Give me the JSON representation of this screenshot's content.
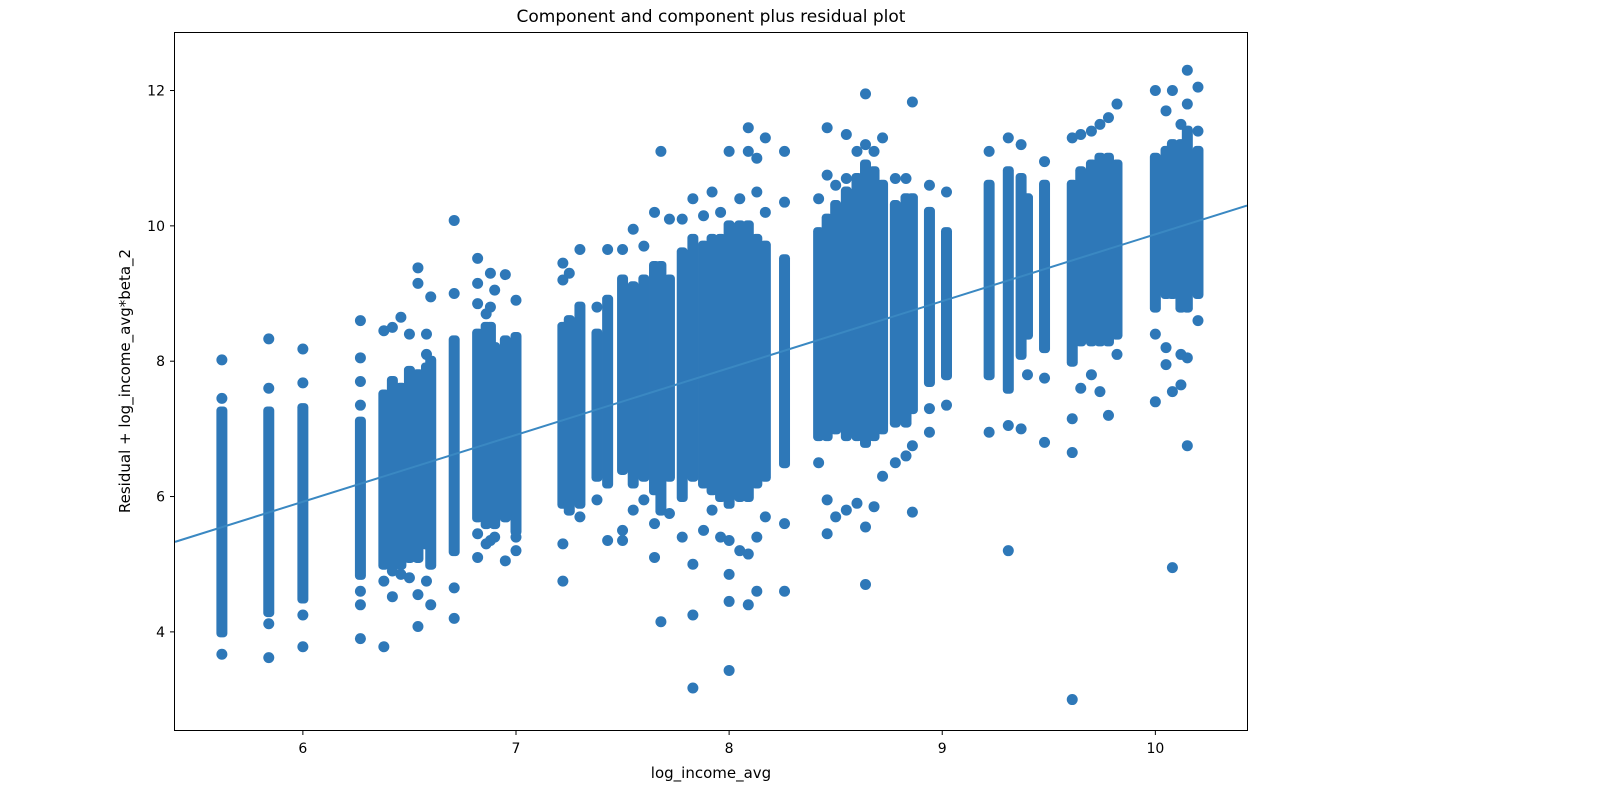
{
  "chart_data": {
    "type": "scatter",
    "title": "Component and component plus residual plot",
    "xlabel": "log_income_avg",
    "ylabel": "Residual + log_income_avg*beta_2",
    "xlim": [
      5.4,
      10.43
    ],
    "ylim": [
      2.55,
      12.85
    ],
    "x_ticks": [
      6,
      7,
      8,
      9,
      10
    ],
    "y_ticks": [
      4,
      6,
      8,
      10,
      12
    ],
    "grid": false,
    "legend": "none",
    "colors": {
      "points": "#2e78b8",
      "line": "#3a88c2",
      "axes": "#000000"
    },
    "fit_line": {
      "x": [
        5.4,
        10.43
      ],
      "y": [
        5.33,
        10.3
      ]
    },
    "column_groups": [
      {
        "x": 5.62,
        "ymin": 4.0,
        "ymax": 7.25,
        "points": [
          8.02,
          7.45,
          3.67
        ]
      },
      {
        "x": 5.84,
        "ymin": 4.3,
        "ymax": 7.25,
        "points": [
          8.33,
          7.6,
          4.12,
          3.62
        ]
      },
      {
        "x": 6.0,
        "ymin": 4.5,
        "ymax": 7.3,
        "points": [
          8.18,
          7.68,
          4.25,
          3.78
        ]
      },
      {
        "x": 6.27,
        "ymin": 4.85,
        "ymax": 7.1,
        "points": [
          8.6,
          8.05,
          7.7,
          7.35,
          4.6,
          4.4,
          3.9
        ]
      },
      {
        "x": 6.38,
        "ymin": 5.0,
        "ymax": 7.5,
        "points": [
          8.45,
          4.75,
          3.78
        ]
      },
      {
        "x": 6.42,
        "ymin": 5.0,
        "ymax": 7.7,
        "points": [
          8.5,
          4.9,
          4.52
        ]
      },
      {
        "x": 6.46,
        "ymin": 5.0,
        "ymax": 7.6,
        "points": [
          8.65,
          4.85
        ]
      },
      {
        "x": 6.5,
        "ymin": 5.1,
        "ymax": 7.85,
        "points": [
          8.4,
          4.8
        ]
      },
      {
        "x": 6.54,
        "ymin": 5.1,
        "ymax": 7.8,
        "points": [
          9.38,
          9.15,
          4.55,
          4.08
        ]
      },
      {
        "x": 6.58,
        "ymin": 5.3,
        "ymax": 7.9,
        "points": [
          8.4,
          8.1,
          4.75
        ]
      },
      {
        "x": 6.6,
        "ymin": 5.0,
        "ymax": 8.0,
        "points": [
          8.95,
          4.4
        ]
      },
      {
        "x": 6.71,
        "ymin": 5.2,
        "ymax": 8.3,
        "points": [
          10.08,
          9.0,
          4.65,
          4.2
        ]
      },
      {
        "x": 6.82,
        "ymin": 5.7,
        "ymax": 8.4,
        "points": [
          9.52,
          9.15,
          8.85,
          5.45,
          5.1
        ]
      },
      {
        "x": 6.86,
        "ymin": 5.6,
        "ymax": 8.5,
        "points": [
          8.7,
          5.3
        ]
      },
      {
        "x": 6.88,
        "ymin": 5.7,
        "ymax": 8.5,
        "points": [
          9.3,
          8.8,
          5.35
        ]
      },
      {
        "x": 6.9,
        "ymin": 5.6,
        "ymax": 8.2,
        "points": [
          9.05,
          5.4
        ]
      },
      {
        "x": 6.95,
        "ymin": 5.7,
        "ymax": 8.3,
        "points": [
          9.28,
          5.05
        ]
      },
      {
        "x": 7.0,
        "ymin": 5.5,
        "ymax": 8.35,
        "points": [
          8.9,
          5.4,
          5.2
        ]
      },
      {
        "x": 7.22,
        "ymin": 5.9,
        "ymax": 8.5,
        "points": [
          9.45,
          9.2,
          5.3,
          4.75
        ]
      },
      {
        "x": 7.25,
        "ymin": 5.8,
        "ymax": 8.6,
        "points": [
          9.3,
          5.9
        ]
      },
      {
        "x": 7.3,
        "ymin": 5.9,
        "ymax": 8.8,
        "points": [
          9.65,
          5.7
        ]
      },
      {
        "x": 7.38,
        "ymin": 6.3,
        "ymax": 8.4,
        "points": [
          8.8,
          5.95
        ]
      },
      {
        "x": 7.43,
        "ymin": 6.2,
        "ymax": 8.9,
        "points": [
          9.65,
          5.35
        ]
      },
      {
        "x": 7.5,
        "ymin": 6.4,
        "ymax": 9.2,
        "points": [
          9.65,
          5.5,
          5.35
        ]
      },
      {
        "x": 7.55,
        "ymin": 6.2,
        "ymax": 9.1,
        "points": [
          9.95,
          5.8
        ]
      },
      {
        "x": 7.6,
        "ymin": 6.3,
        "ymax": 9.2,
        "points": [
          9.7,
          5.95
        ]
      },
      {
        "x": 7.65,
        "ymin": 6.1,
        "ymax": 9.4,
        "points": [
          10.2,
          5.6,
          5.1
        ]
      },
      {
        "x": 7.68,
        "ymin": 5.8,
        "ymax": 9.4,
        "points": [
          11.1,
          4.15
        ]
      },
      {
        "x": 7.72,
        "ymin": 6.3,
        "ymax": 9.2,
        "points": [
          10.1,
          5.75
        ]
      },
      {
        "x": 7.78,
        "ymin": 6.0,
        "ymax": 9.6,
        "points": [
          10.1,
          5.4
        ]
      },
      {
        "x": 7.83,
        "ymin": 6.3,
        "ymax": 9.8,
        "points": [
          10.4,
          5.0,
          4.25,
          3.17
        ]
      },
      {
        "x": 7.88,
        "ymin": 6.2,
        "ymax": 9.7,
        "points": [
          10.15,
          5.5
        ]
      },
      {
        "x": 7.92,
        "ymin": 6.1,
        "ymax": 9.8,
        "points": [
          10.5,
          5.8
        ]
      },
      {
        "x": 7.96,
        "ymin": 6.0,
        "ymax": 9.8,
        "points": [
          10.2,
          5.4
        ]
      },
      {
        "x": 8.0,
        "ymin": 5.9,
        "ymax": 10.0,
        "points": [
          11.1,
          5.35,
          4.85,
          4.45,
          3.43
        ]
      },
      {
        "x": 8.05,
        "ymin": 6.0,
        "ymax": 10.0,
        "points": [
          10.4,
          5.2
        ]
      },
      {
        "x": 8.09,
        "ymin": 6.0,
        "ymax": 10.0,
        "points": [
          11.45,
          11.1,
          5.15,
          4.4
        ]
      },
      {
        "x": 8.13,
        "ymin": 6.2,
        "ymax": 9.8,
        "points": [
          11.0,
          10.5,
          5.4,
          4.6
        ]
      },
      {
        "x": 8.17,
        "ymin": 6.3,
        "ymax": 9.7,
        "points": [
          11.3,
          10.2,
          5.7
        ]
      },
      {
        "x": 8.26,
        "ymin": 6.5,
        "ymax": 9.5,
        "points": [
          11.1,
          10.35,
          5.6,
          4.6
        ]
      },
      {
        "x": 8.42,
        "ymin": 6.9,
        "ymax": 9.9,
        "points": [
          10.4,
          6.5
        ]
      },
      {
        "x": 8.46,
        "ymin": 6.9,
        "ymax": 10.1,
        "points": [
          11.45,
          10.75,
          5.95,
          5.45
        ]
      },
      {
        "x": 8.5,
        "ymin": 7.0,
        "ymax": 10.3,
        "points": [
          10.6,
          5.7
        ]
      },
      {
        "x": 8.55,
        "ymin": 6.9,
        "ymax": 10.5,
        "points": [
          11.35,
          10.7,
          5.8
        ]
      },
      {
        "x": 8.6,
        "ymin": 6.9,
        "ymax": 10.7,
        "points": [
          11.1,
          5.9
        ]
      },
      {
        "x": 8.64,
        "ymin": 6.8,
        "ymax": 10.9,
        "points": [
          11.95,
          11.2,
          5.55,
          4.7
        ]
      },
      {
        "x": 8.68,
        "ymin": 6.9,
        "ymax": 10.8,
        "points": [
          11.1,
          5.85
        ]
      },
      {
        "x": 8.72,
        "ymin": 7.0,
        "ymax": 10.6,
        "points": [
          11.3,
          6.3
        ]
      },
      {
        "x": 8.78,
        "ymin": 7.1,
        "ymax": 10.3,
        "points": [
          10.7,
          6.5
        ]
      },
      {
        "x": 8.83,
        "ymin": 7.1,
        "ymax": 10.4,
        "points": [
          10.7,
          6.6
        ]
      },
      {
        "x": 8.86,
        "ymin": 7.3,
        "ymax": 10.4,
        "points": [
          11.83,
          6.75,
          5.77
        ]
      },
      {
        "x": 8.94,
        "ymin": 7.7,
        "ymax": 10.2,
        "points": [
          10.6,
          7.3,
          6.95
        ]
      },
      {
        "x": 9.02,
        "ymin": 7.8,
        "ymax": 9.9,
        "points": [
          10.5,
          7.35
        ]
      },
      {
        "x": 9.22,
        "ymin": 7.8,
        "ymax": 10.6,
        "points": [
          11.1,
          6.95
        ]
      },
      {
        "x": 9.31,
        "ymin": 7.6,
        "ymax": 10.8,
        "points": [
          11.3,
          7.05,
          5.2
        ]
      },
      {
        "x": 9.37,
        "ymin": 8.1,
        "ymax": 10.7,
        "points": [
          11.2,
          7.0
        ]
      },
      {
        "x": 9.4,
        "ymin": 8.4,
        "ymax": 10.4,
        "points": [
          7.8
        ]
      },
      {
        "x": 9.48,
        "ymin": 8.2,
        "ymax": 10.6,
        "points": [
          10.95,
          7.75,
          6.8
        ]
      },
      {
        "x": 9.61,
        "ymin": 8.0,
        "ymax": 10.6,
        "points": [
          11.3,
          7.15,
          6.65,
          3.0
        ]
      },
      {
        "x": 9.65,
        "ymin": 8.3,
        "ymax": 10.8,
        "points": [
          11.35,
          7.6
        ]
      },
      {
        "x": 9.7,
        "ymin": 8.3,
        "ymax": 10.9,
        "points": [
          11.4,
          7.8
        ]
      },
      {
        "x": 9.74,
        "ymin": 8.3,
        "ymax": 11.0,
        "points": [
          11.5,
          7.55
        ]
      },
      {
        "x": 9.78,
        "ymin": 8.3,
        "ymax": 11.0,
        "points": [
          11.6,
          7.2
        ]
      },
      {
        "x": 9.82,
        "ymin": 8.4,
        "ymax": 10.9,
        "points": [
          11.8,
          8.1
        ]
      },
      {
        "x": 10.0,
        "ymin": 8.8,
        "ymax": 11.0,
        "points": [
          12.0,
          8.4,
          7.4
        ]
      },
      {
        "x": 10.05,
        "ymin": 9.0,
        "ymax": 11.1,
        "points": [
          11.7,
          8.2,
          7.95
        ]
      },
      {
        "x": 10.08,
        "ymin": 9.0,
        "ymax": 11.2,
        "points": [
          12.0,
          7.55,
          4.95
        ]
      },
      {
        "x": 10.12,
        "ymin": 8.8,
        "ymax": 11.2,
        "points": [
          11.5,
          8.1,
          7.65
        ]
      },
      {
        "x": 10.15,
        "ymin": 8.8,
        "ymax": 11.4,
        "points": [
          12.3,
          11.8,
          8.05,
          6.75
        ]
      },
      {
        "x": 10.2,
        "ymin": 9.0,
        "ymax": 11.1,
        "points": [
          12.05,
          11.4,
          8.6
        ]
      }
    ]
  }
}
